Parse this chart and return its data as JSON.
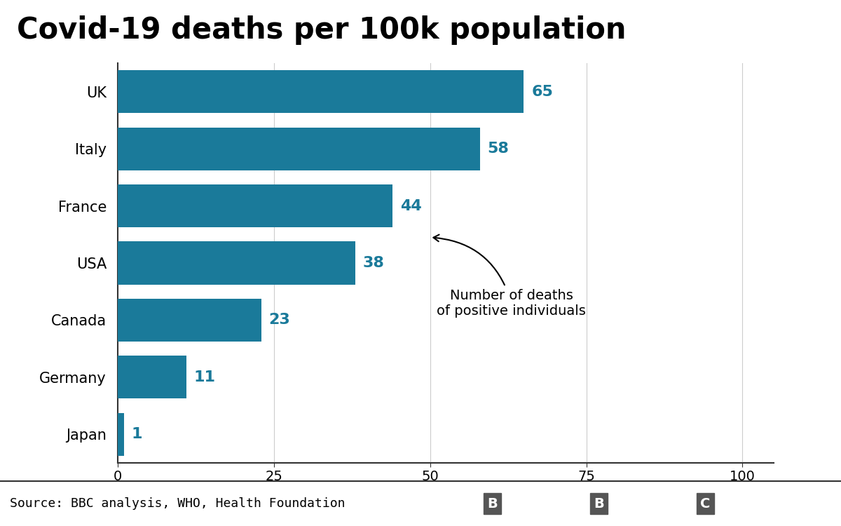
{
  "title": "Covid-19 deaths per 100k population",
  "countries": [
    "Japan",
    "Germany",
    "Canada",
    "USA",
    "France",
    "Italy",
    "UK"
  ],
  "values": [
    1,
    11,
    23,
    38,
    44,
    58,
    65
  ],
  "bar_color": "#1a7a9a",
  "value_color": "#1a7a9a",
  "xlim": [
    0,
    105
  ],
  "xticks": [
    0,
    25,
    50,
    75,
    100
  ],
  "source_text": "Source: BBC analysis, WHO, Health Foundation",
  "annotation_text": "Number of deaths\nof positive individuals",
  "background_color": "#ffffff",
  "footer_bg_color": "#e0e0e0",
  "footer_line_color": "#333333",
  "bbc_logo_text": "BBC",
  "title_fontsize": 30,
  "label_fontsize": 15,
  "value_fontsize": 16,
  "tick_fontsize": 14,
  "source_fontsize": 13,
  "annotation_fontsize": 14,
  "bar_height": 0.75,
  "grid_color": "#cccccc",
  "spine_color": "#333333"
}
